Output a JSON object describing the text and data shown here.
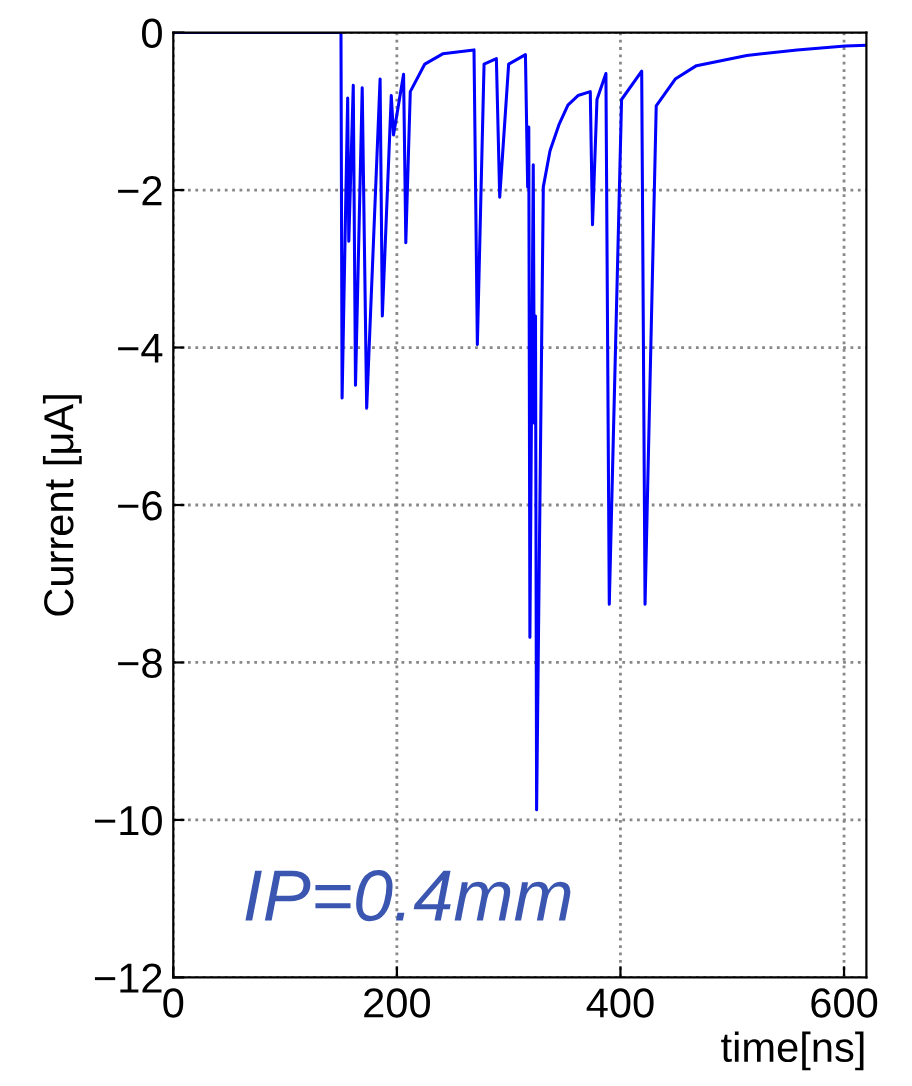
{
  "chart_data": {
    "type": "line",
    "xlabel": "time[ns]",
    "ylabel": "Current [μA]",
    "xlim": [
      0,
      620
    ],
    "ylim": [
      -12,
      0
    ],
    "xticks": [
      0,
      200,
      400,
      600
    ],
    "yticks": [
      -12,
      -10,
      -8,
      -6,
      -4,
      -2,
      0
    ],
    "grid": true,
    "line_style": "solid",
    "marker": "none",
    "annotations": [
      "IP=0.4mm"
    ],
    "series": [
      {
        "color": "#0000ff",
        "x": [
          0,
          150,
          151,
          156,
          157,
          161,
          163,
          169,
          173,
          185,
          187,
          195,
          197,
          206,
          208,
          212,
          225,
          241,
          269,
          272,
          278,
          289,
          292,
          300,
          315,
          317,
          318,
          319,
          322,
          323,
          324,
          325,
          331,
          337,
          345,
          353,
          362,
          373,
          375,
          379,
          387,
          390,
          401,
          419,
          422,
          432,
          449,
          468,
          513,
          558,
          601,
          620
        ],
        "values": [
          0,
          0,
          -4.64,
          -0.83,
          -2.65,
          -0.67,
          -4.48,
          -0.7,
          -4.77,
          -0.59,
          -3.6,
          -0.8,
          -1.3,
          -0.53,
          -2.67,
          -0.75,
          -0.4,
          -0.27,
          -0.22,
          -3.96,
          -0.4,
          -0.33,
          -2.09,
          -0.4,
          -0.28,
          -1.96,
          -1.2,
          -7.68,
          -1.68,
          -4.96,
          -3.6,
          -9.87,
          -1.96,
          -1.5,
          -1.17,
          -0.92,
          -0.8,
          -0.75,
          -2.44,
          -0.85,
          -0.52,
          -7.26,
          -0.85,
          -0.49,
          -7.26,
          -0.93,
          -0.59,
          -0.42,
          -0.29,
          -0.22,
          -0.17,
          -0.16
        ]
      }
    ]
  }
}
